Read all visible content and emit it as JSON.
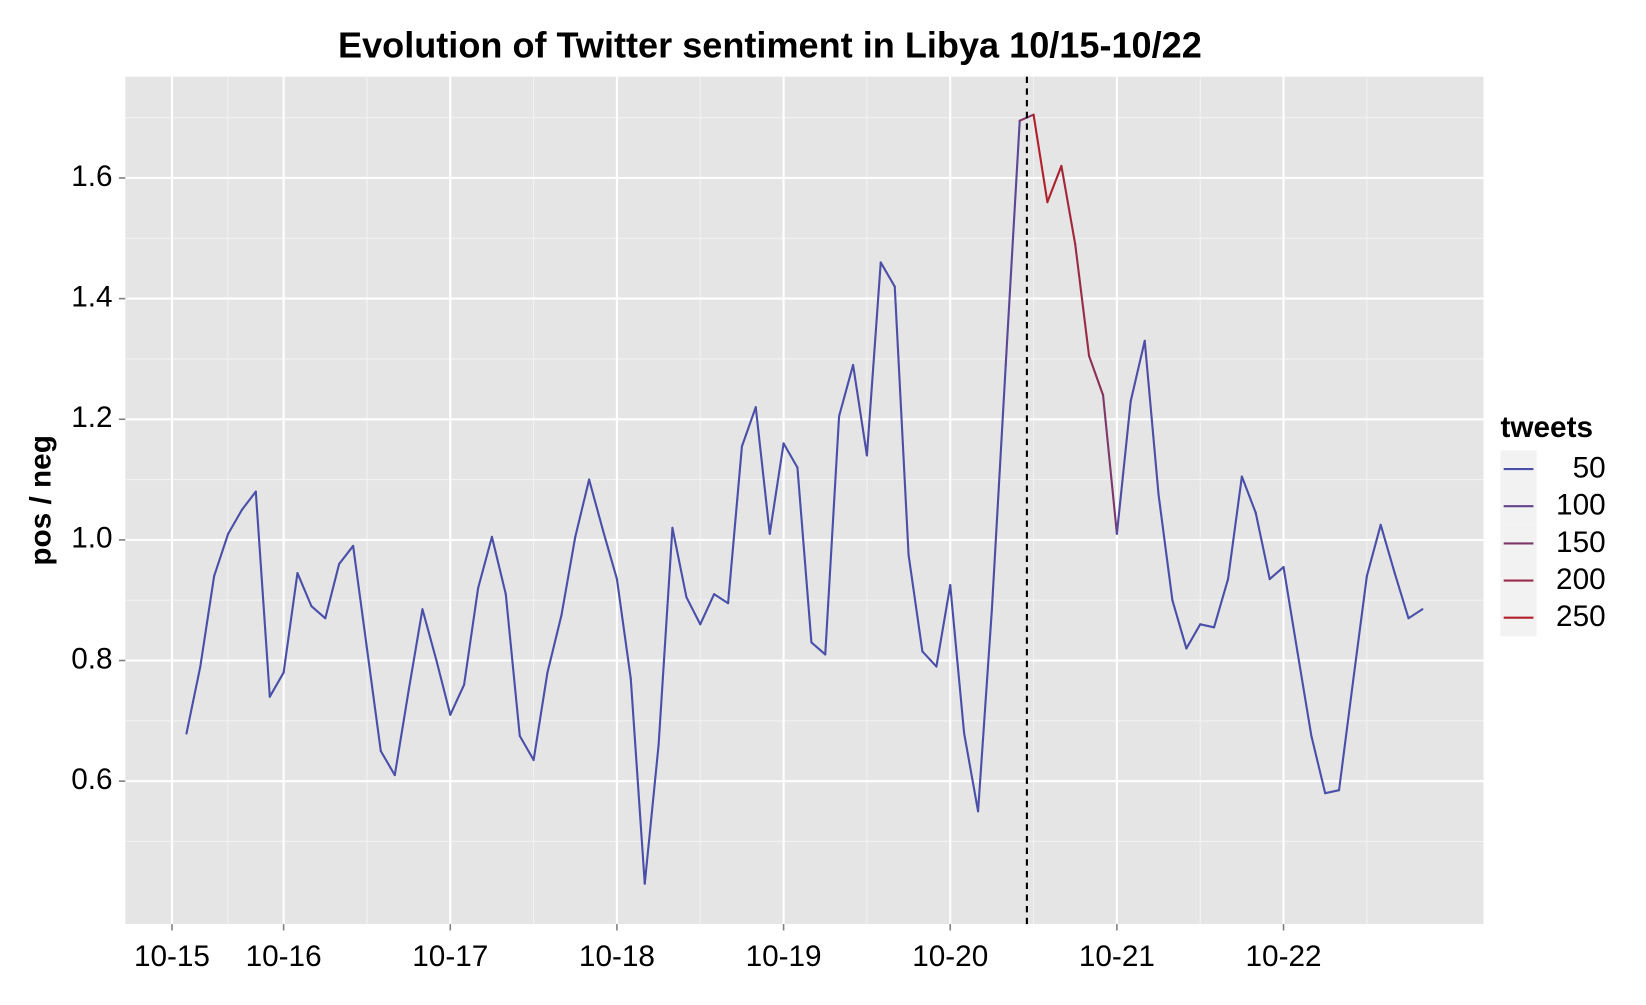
{
  "chart_data": {
    "type": "line",
    "title": "Evolution of Twitter sentiment in Libya 10/15-10/22",
    "y_label": "pos / neg",
    "x": [
      15.417,
      15.5,
      15.583,
      15.667,
      15.75,
      15.833,
      15.917,
      16,
      16.083,
      16.167,
      16.25,
      16.333,
      16.417,
      16.5,
      16.583,
      16.667,
      16.75,
      16.833,
      16.917,
      17,
      17.083,
      17.167,
      17.25,
      17.333,
      17.417,
      17.5,
      17.583,
      17.667,
      17.75,
      17.833,
      17.917,
      18,
      18.083,
      18.167,
      18.25,
      18.333,
      18.417,
      18.5,
      18.583,
      18.667,
      18.75,
      18.833,
      18.917,
      19,
      19.083,
      19.167,
      19.25,
      19.333,
      19.417,
      19.5,
      19.583,
      19.667,
      19.75,
      19.833,
      19.917,
      20,
      20.083,
      20.167,
      20.25,
      20.333,
      20.417,
      20.5,
      20.583,
      20.667,
      20.75,
      20.833,
      20.917,
      21,
      21.083,
      21.167,
      21.25,
      21.333,
      21.417,
      21.5,
      21.583,
      21.667,
      21.75,
      21.833,
      21.917,
      22,
      22.083,
      22.167,
      22.25,
      22.333,
      22.417,
      22.5,
      22.583,
      22.667,
      22.75,
      22.833
    ],
    "series": [
      {
        "name": "pos / neg",
        "values": [
          0.679,
          0.79,
          0.94,
          1.01,
          1.05,
          1.08,
          0.74,
          0.78,
          0.945,
          0.89,
          0.87,
          0.96,
          0.99,
          0.82,
          0.65,
          0.61,
          0.75,
          0.885,
          0.8,
          0.71,
          0.76,
          0.92,
          1.005,
          0.91,
          0.675,
          0.635,
          0.78,
          0.875,
          1.005,
          1.1,
          1.015,
          0.935,
          0.77,
          0.43,
          0.66,
          1.02,
          0.905,
          0.86,
          0.91,
          0.895,
          1.155,
          1.22,
          1.01,
          1.16,
          1.12,
          0.83,
          0.81,
          1.205,
          1.29,
          1.14,
          1.46,
          1.42,
          0.975,
          0.815,
          0.79,
          0.925,
          0.68,
          0.55,
          0.885,
          1.29,
          1.695,
          1.705,
          1.56,
          1.62,
          1.49,
          1.305,
          1.24,
          1.01,
          1.23,
          1.33,
          1.075,
          0.9,
          0.82,
          0.86,
          0.855,
          0.935,
          1.105,
          1.045,
          0.935,
          0.955,
          0.815,
          0.675,
          0.58,
          0.585,
          0.765,
          0.94,
          1.025,
          0.945,
          0.87,
          0.885
        ],
        "tweets": [
          45,
          45,
          45,
          45,
          45,
          45,
          45,
          45,
          45,
          45,
          45,
          45,
          45,
          45,
          45,
          45,
          45,
          45,
          45,
          45,
          45,
          45,
          45,
          45,
          45,
          45,
          45,
          45,
          45,
          45,
          45,
          45,
          45,
          45,
          45,
          45,
          45,
          45,
          45,
          45,
          50,
          50,
          50,
          50,
          50,
          50,
          50,
          50,
          55,
          55,
          55,
          55,
          50,
          50,
          50,
          50,
          50,
          50,
          60,
          80,
          160,
          250,
          240,
          220,
          200,
          180,
          150,
          60,
          55,
          55,
          50,
          50,
          50,
          50,
          50,
          50,
          50,
          50,
          50,
          50,
          50,
          50,
          50,
          50,
          50,
          50,
          50,
          50,
          50,
          50
        ]
      }
    ],
    "color_scale": {
      "title": "tweets",
      "ticks": [
        50,
        100,
        150,
        200,
        250
      ],
      "low": "#4a4fa8",
      "high": "#b1202a"
    },
    "vline": 20.46,
    "xlim": [
      15.05,
      23.2
    ],
    "xticks": [
      {
        "value": 15.33,
        "label": "10-15"
      },
      {
        "value": 16,
        "label": "10-16"
      },
      {
        "value": 17,
        "label": "10-17"
      },
      {
        "value": 18,
        "label": "10-18"
      },
      {
        "value": 19,
        "label": "10-19"
      },
      {
        "value": 20,
        "label": "10-20"
      },
      {
        "value": 21,
        "label": "10-21"
      },
      {
        "value": 22,
        "label": "10-22"
      }
    ],
    "ylim": [
      0.363,
      1.768
    ],
    "yticks": [
      {
        "value": 0.6,
        "label": "0.6"
      },
      {
        "value": 0.8,
        "label": "0.8"
      },
      {
        "value": 1.0,
        "label": "1.0"
      },
      {
        "value": 1.2,
        "label": "1.2"
      },
      {
        "value": 1.4,
        "label": "1.4"
      },
      {
        "value": 1.6,
        "label": "1.6"
      }
    ],
    "grid": true
  }
}
